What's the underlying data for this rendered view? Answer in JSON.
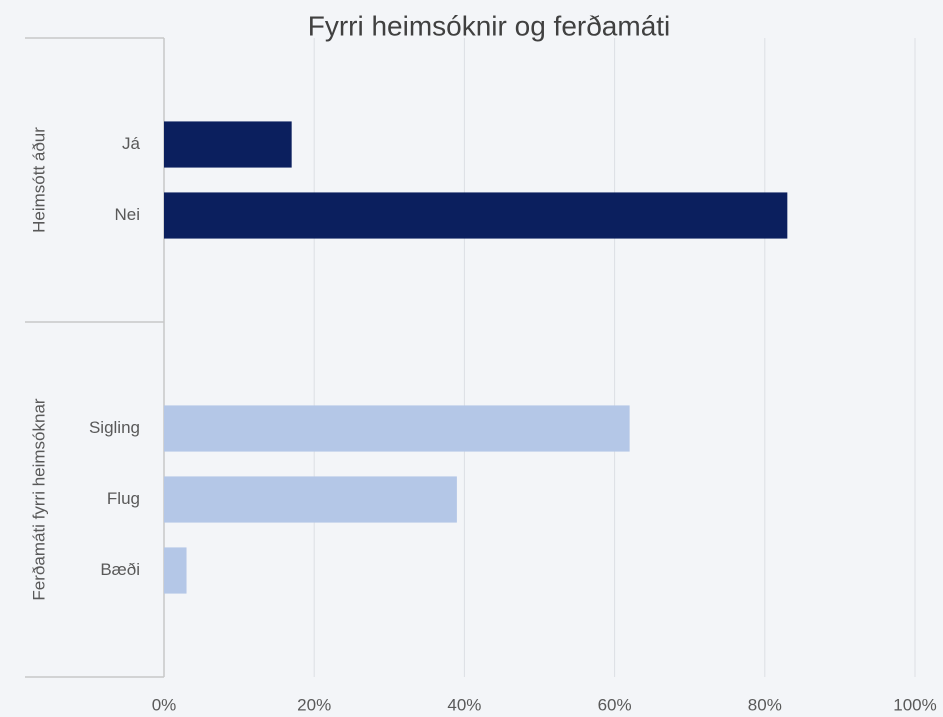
{
  "chart_data": {
    "type": "bar",
    "orientation": "horizontal",
    "title": "Fyrri heimsóknir og ferðamáti",
    "groups": [
      {
        "name": "Heimsótt áður",
        "color": "#0b1f5e",
        "categories": [
          "Já",
          "Nei"
        ],
        "values": [
          17,
          83
        ]
      },
      {
        "name": "Ferðamáti fyrri heimsóknar",
        "color": "#b4c7e7",
        "categories": [
          "Sigling",
          "Flug",
          "Bæði"
        ],
        "values": [
          62,
          39,
          3
        ]
      }
    ],
    "xlim": [
      0,
      100
    ],
    "xticks": [
      {
        "value": 0,
        "label": "0%"
      },
      {
        "value": 20,
        "label": "20%"
      },
      {
        "value": 40,
        "label": "40%"
      },
      {
        "value": 60,
        "label": "60%"
      },
      {
        "value": 80,
        "label": "80%"
      },
      {
        "value": 100,
        "label": "100%"
      }
    ],
    "grid": true
  }
}
